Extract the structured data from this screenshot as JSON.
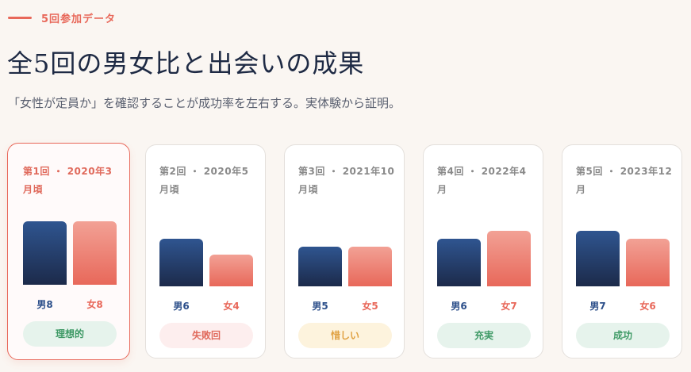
{
  "eyebrow": "5回参加データ",
  "title": "全5回の男女比と出会いの成果",
  "subtitle": "「女性が定員か」を確認することが成功率を左右する。実体験から証明。",
  "colors": {
    "accent": "#e8685a",
    "male": "#2c4f8a",
    "female": "#e8685a",
    "good": "#3f9a66",
    "bad": "#e06a5c",
    "meh": "#e0a040"
  },
  "chart_data": {
    "type": "bar",
    "categories": [
      "第1回・2020年3月頃",
      "第2回・2020年5月頃",
      "第3回・2021年10月頃",
      "第4回・2022年4月",
      "第5回・2023年12月"
    ],
    "series": [
      {
        "name": "男",
        "values": [
          8,
          6,
          5,
          6,
          7
        ]
      },
      {
        "name": "女",
        "values": [
          8,
          4,
          5,
          7,
          6
        ]
      }
    ],
    "ylim": [
      0,
      8
    ]
  },
  "cards": [
    {
      "label": "第1回 ・ 2020年3月頃",
      "male": 8,
      "female": 8,
      "male_label": "男8",
      "female_label": "女8",
      "badge": "理想的",
      "status": "good",
      "highlight": true
    },
    {
      "label": "第2回 ・ 2020年5月頃",
      "male": 6,
      "female": 4,
      "male_label": "男6",
      "female_label": "女4",
      "badge": "失敗回",
      "status": "bad",
      "highlight": false
    },
    {
      "label": "第3回 ・ 2021年10月頃",
      "male": 5,
      "female": 5,
      "male_label": "男5",
      "female_label": "女5",
      "badge": "惜しい",
      "status": "meh",
      "highlight": false
    },
    {
      "label": "第4回 ・ 2022年4月",
      "male": 6,
      "female": 7,
      "male_label": "男6",
      "female_label": "女7",
      "badge": "充実",
      "status": "good",
      "highlight": false
    },
    {
      "label": "第5回 ・ 2023年12月",
      "male": 7,
      "female": 6,
      "male_label": "男7",
      "female_label": "女6",
      "badge": "成功",
      "status": "good",
      "highlight": false
    }
  ]
}
